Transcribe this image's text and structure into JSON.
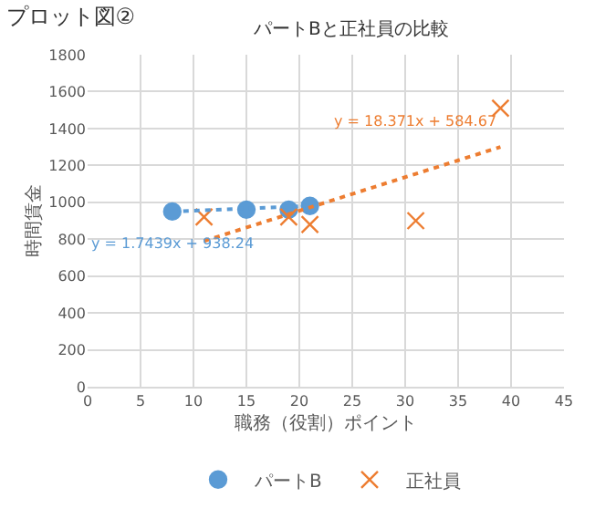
{
  "chart_data": {
    "type": "scatter",
    "title": "プロット図②",
    "subtitle": "パートBと正社員の比較",
    "xlabel": "職務（役割）ポイント",
    "ylabel": "時間賃金",
    "xlim": [
      0,
      45
    ],
    "xticks": [
      0,
      5,
      10,
      15,
      20,
      25,
      30,
      35,
      40,
      45
    ],
    "ylim": [
      0,
      1800
    ],
    "yticks": [
      0,
      200,
      400,
      600,
      800,
      1000,
      1200,
      1400,
      1600,
      1800
    ],
    "grid": true,
    "legend": "bottom",
    "series": [
      {
        "name": "パートB",
        "color": "#5b9bd5",
        "marker": "circle",
        "x": [
          8,
          15,
          19,
          21
        ],
        "values": [
          950,
          960,
          960,
          980
        ]
      },
      {
        "name": "正社員",
        "color": "#ed7d31",
        "marker": "cross",
        "x": [
          11,
          19,
          21,
          31,
          39
        ],
        "values": [
          920,
          920,
          880,
          900,
          1510
        ]
      },
      {
        "type": "line",
        "color": "#5b9bd5",
        "line_style": "dotted",
        "x": [
          8,
          21
        ],
        "values": [
          950,
          980
        ]
      },
      {
        "type": "line",
        "color": "#ed7d31",
        "line_style": "dotted",
        "x": [
          11,
          39
        ],
        "values": [
          790,
          1300
        ]
      }
    ],
    "annotations": [
      {
        "text": "y = 1.7439x + 938.24",
        "x": 8,
        "y": 950
      },
      {
        "text": "y = 18.371x + 584.67",
        "x": 39,
        "y": 1300
      }
    ]
  }
}
